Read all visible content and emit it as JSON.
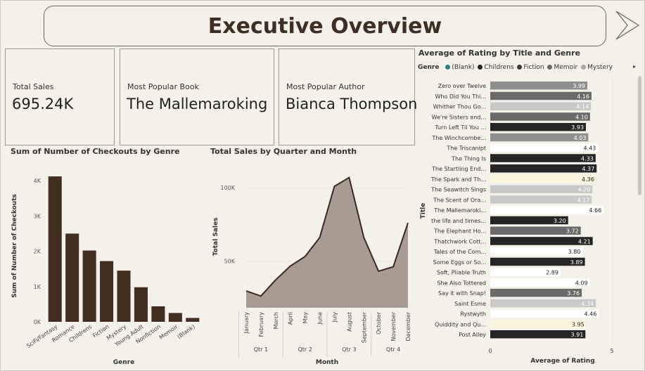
{
  "page": {
    "title": "Executive Overview"
  },
  "kpis": [
    {
      "label": "Total Sales",
      "value": "695.24K"
    },
    {
      "label": "Most Popular Book",
      "value": "The Mallemaroking"
    },
    {
      "label": "Most Popular Author",
      "value": "Bianca Thompson"
    }
  ],
  "colors": {
    "background": "#f4f1ea",
    "title": "#3f2f22",
    "bar_brown": "#432f22",
    "area_fill": "#a89c92",
    "line": "#3a2a20",
    "genre": {
      "(Blank)": "#2f7d7a",
      "Childrens": "#252525",
      "Fiction": "#3a3a3a",
      "Memoir": "#6a6a6a",
      "Mystery": "#a9a9a9",
      "SciFi/Fantasy": "#c9c9c9",
      "Romance": "#8f8f8f",
      "Young Adult": "#fbf5de",
      "Nonfiction": "#ffffff"
    }
  },
  "icons": {
    "nav_next": "chevron-right-icon",
    "legend_next": "caret-right-icon"
  },
  "chart_data": [
    {
      "type": "bar",
      "title": "Sum of Number of Checkouts by Genre",
      "xlabel": "Genre",
      "ylabel": "Sum of Number of Checkouts",
      "categories": [
        "SciFi/Fantasy",
        "Romance",
        "Childrens",
        "Fiction",
        "Mystery",
        "Young Adult",
        "Nonfiction",
        "Memoir",
        "(Blank)"
      ],
      "values": [
        4120,
        2500,
        2020,
        1720,
        1450,
        980,
        440,
        250,
        110
      ],
      "ylim": [
        0,
        4300
      ],
      "yticks": [
        0,
        1000,
        2000,
        3000,
        4000
      ],
      "ytick_labels": [
        "0K",
        "1K",
        "2K",
        "3K",
        "4K"
      ]
    },
    {
      "type": "area",
      "title": "Total Sales by Quarter and Month",
      "xlabel": "Month",
      "ylabel": "Total Sales",
      "categories": [
        "January",
        "February",
        "March",
        "April",
        "May",
        "June",
        "July",
        "August",
        "September",
        "October",
        "November",
        "December"
      ],
      "values": [
        29500,
        26000,
        37000,
        46500,
        53000,
        66000,
        101000,
        107000,
        66000,
        43000,
        46000,
        76000
      ],
      "quarters": [
        "Qtr 1",
        "Qtr 2",
        "Qtr 3",
        "Qtr 4"
      ],
      "ylim": [
        18000,
        115000
      ],
      "yticks": [
        50000,
        100000
      ],
      "ytick_labels": [
        "50K",
        "100K"
      ]
    },
    {
      "type": "bar",
      "orientation": "horizontal",
      "title": "Average of Rating by Title and Genre",
      "xlabel": "Average of Rating",
      "ylabel": "Title",
      "legend_title": "Genre",
      "legend": [
        "(Blank)",
        "Childrens",
        "Fiction",
        "Memoir",
        "Mystery"
      ],
      "xlim": [
        0,
        5
      ],
      "xticks": [
        0,
        5
      ],
      "categories": [
        "Zero over Twelve",
        "Who Did You Thi...",
        "Whither Thou Go...",
        "We're Sisters and...",
        "Turn Left Til You ...",
        "The Winchcombe...",
        "The Triscanipt",
        "The Thing Is",
        "The Startling End...",
        "The Spark and Th...",
        "The Seawitch Sings",
        "The Scent of Ora...",
        "The Mallemaroki...",
        "the life and times...",
        "The Elephant Ho...",
        "Thatchwork Cott...",
        "Tales of the Com...",
        "Some Eggs or So...",
        "Soft, Pliable Truth",
        "She Also Tottered",
        "Say it with Snap!",
        "Saint Esme",
        "Rystwyth",
        "Quiddity and Qu...",
        "Post Alley"
      ],
      "values": [
        3.99,
        4.16,
        4.14,
        4.1,
        3.93,
        4.03,
        4.43,
        4.33,
        4.37,
        4.36,
        4.2,
        4.17,
        4.66,
        3.2,
        3.72,
        4.21,
        3.8,
        3.89,
        2.89,
        4.09,
        3.76,
        4.34,
        4.46,
        3.95,
        3.91
      ],
      "value_labels": [
        "3.99",
        "4.16",
        "4.14",
        "4.10",
        "3.93",
        "4.03",
        "4.43",
        "4.33",
        "4.37",
        "4.36",
        "4.20",
        "4.17",
        "4.66",
        "3.20",
        "3.72",
        "4.21",
        "3.80",
        "3.89",
        "2.89",
        "4.09",
        "3.76",
        "4.34",
        "4.46",
        "3.95",
        "3.91"
      ],
      "bar_colors": [
        "#8f8f8f",
        "#6a6a6a",
        "#c9c9c9",
        "#6a6a6a",
        "#252525",
        "#8f8f8f",
        "#ffffff",
        "#252525",
        "#252525",
        "#fbf5de",
        "#c9c9c9",
        "#c9c9c9",
        "#ffffff",
        "#252525",
        "#6a6a6a",
        "#252525",
        "#ffffff",
        "#252525",
        "#ffffff",
        "#ffffff",
        "#6a6a6a",
        "#c9c9c9",
        "#ffffff",
        "#fbf5de",
        "#252525"
      ]
    }
  ]
}
